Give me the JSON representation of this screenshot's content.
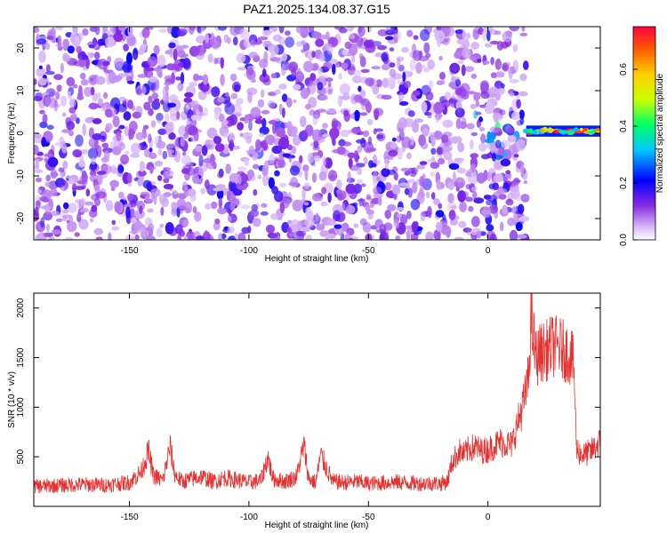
{
  "title": "PAZ1.2025.134.08.37.G15",
  "chart_data": [
    {
      "type": "heatmap",
      "title": "",
      "xlabel": "Height of straight line (km)",
      "ylabel": "Frequency (Hz)",
      "xlim": [
        -190,
        47
      ],
      "ylim": [
        -25,
        25
      ],
      "xticks": [
        -150,
        -100,
        -50,
        0
      ],
      "yticks": [
        -20,
        -10,
        0,
        10,
        20
      ],
      "colorbar": {
        "label": "Normalized spectral amplitude",
        "range": [
          0.0,
          0.75
        ],
        "ticks": [
          0.0,
          0.2,
          0.4,
          0.6
        ],
        "colormap": "rainbow"
      },
      "features": {
        "noise_region_x": [
          -190,
          16
        ],
        "tone_region_x": [
          16,
          47
        ],
        "tone_frequency": 0.5,
        "tone_peak_amplitude": 0.75
      }
    },
    {
      "type": "line",
      "title": "",
      "xlabel": "Height of straight line (km)",
      "ylabel": "SNR (10 * v/v)",
      "xlim": [
        -190,
        47
      ],
      "ylim": [
        0,
        2150
      ],
      "xticks": [
        -150,
        -100,
        -50,
        0
      ],
      "yticks": [
        500,
        1000,
        1500,
        2000
      ],
      "line_color": "#e8302e",
      "series": [
        {
          "x": [
            -190,
            -180,
            -170,
            -160,
            -150,
            -145,
            -142,
            -140,
            -136,
            -133,
            -131,
            -128,
            -120,
            -115,
            -110,
            -100,
            -95,
            -92,
            -90,
            -85,
            -80,
            -77,
            -75,
            -72,
            -70,
            -65,
            -60,
            -55,
            -50,
            -45,
            -40,
            -35,
            -30,
            -25,
            -20,
            -17,
            -15,
            -12,
            -10,
            -8,
            -5,
            -3,
            0,
            5,
            10,
            12,
            15,
            17,
            18,
            20,
            22,
            25,
            27,
            30,
            33,
            35,
            36,
            37,
            38,
            40,
            43,
            47
          ],
          "y": [
            200,
            210,
            220,
            215,
            240,
            350,
            560,
            310,
            260,
            600,
            320,
            250,
            300,
            250,
            290,
            240,
            260,
            500,
            280,
            250,
            300,
            620,
            280,
            240,
            520,
            250,
            240,
            250,
            230,
            235,
            245,
            240,
            230,
            235,
            230,
            250,
            450,
            560,
            520,
            580,
            600,
            560,
            570,
            650,
            620,
            800,
            1050,
            1300,
            1900,
            1500,
            1550,
            1580,
            1620,
            1600,
            1550,
            1500,
            1400,
            600,
            550,
            520,
            550,
            650
          ]
        }
      ]
    }
  ]
}
